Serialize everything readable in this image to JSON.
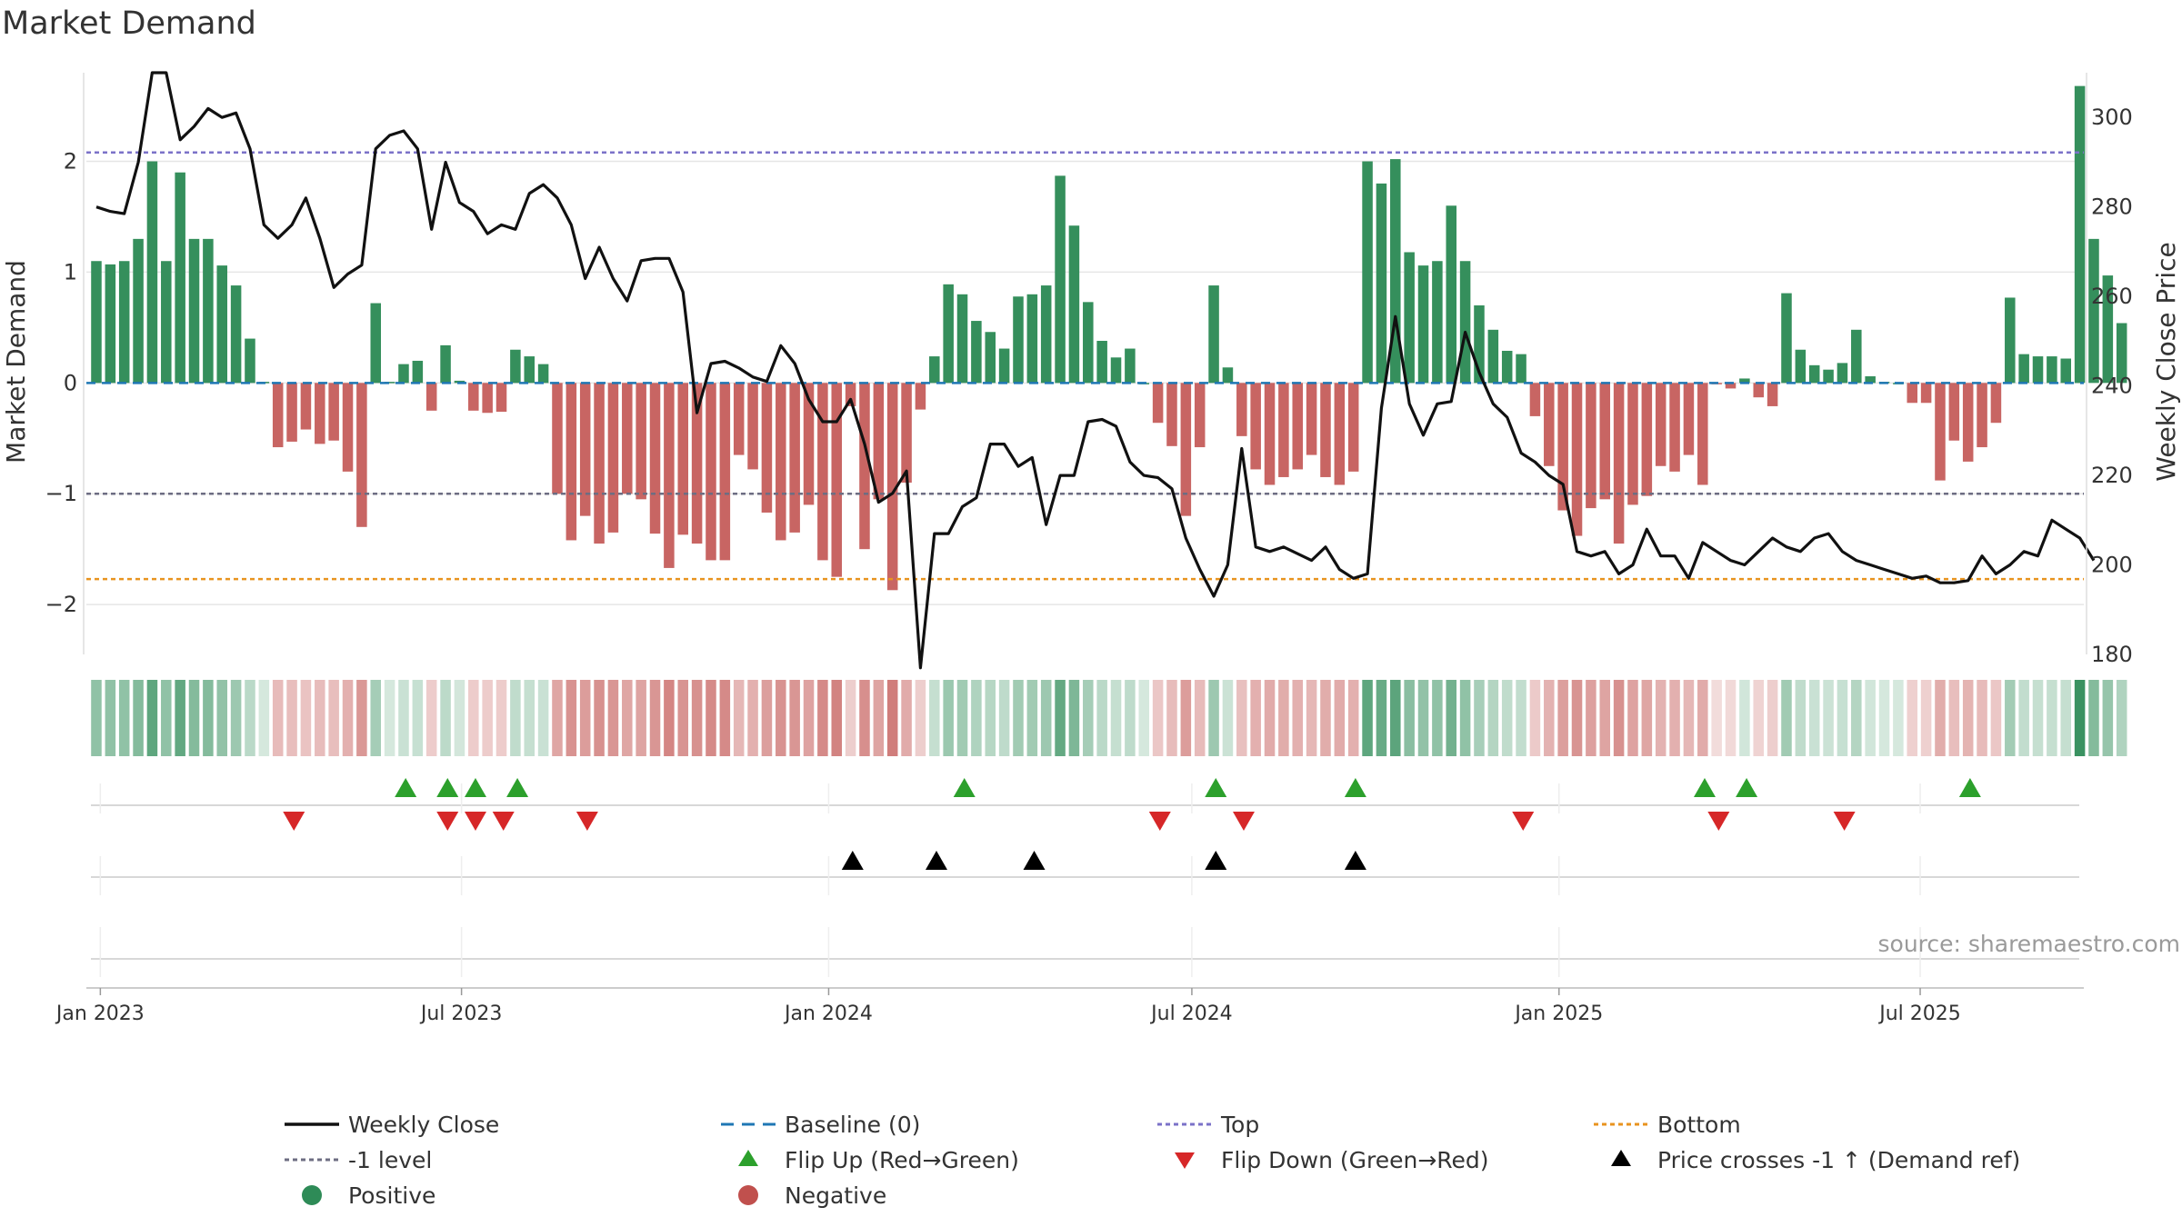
{
  "chart_data": {
    "type": "bar",
    "title": "Market Demand",
    "ylabel": "Market Demand",
    "y2label": "Weekly Close Price",
    "source": "source: sharemaestro.com",
    "ylim": [
      -2.45,
      2.8
    ],
    "y2lim": [
      180,
      310
    ],
    "yticks": [
      -2,
      -1,
      0,
      1,
      2
    ],
    "ytick_labels": [
      "−2",
      "−1",
      "0",
      "1",
      "2"
    ],
    "y2ticks": [
      180,
      200,
      220,
      240,
      260,
      280,
      300
    ],
    "y2tick_labels": [
      "180",
      "200",
      "220",
      "240",
      "260",
      "280",
      "300"
    ],
    "x_start": "2022-12-25",
    "x_end": "2025-09-21",
    "first_week": "2022-12-30",
    "week_days": 7,
    "xticks": [
      {
        "date": "2023-01-01",
        "label": "Jan 2023"
      },
      {
        "date": "2023-07-01",
        "label": "Jul 2023"
      },
      {
        "date": "2024-01-01",
        "label": "Jan 2024"
      },
      {
        "date": "2024-07-01",
        "label": "Jul 2024"
      },
      {
        "date": "2025-01-01",
        "label": "Jan 2025"
      },
      {
        "date": "2025-07-01",
        "label": "Jul 2025"
      }
    ],
    "reference_lines": {
      "top": 2.08,
      "level_minus_1": -1.0,
      "bottom": -1.77,
      "baseline": 0
    },
    "demand": [
      1.1,
      1.07,
      1.1,
      1.3,
      2.0,
      1.1,
      1.9,
      1.3,
      1.3,
      1.06,
      0.88,
      0.4,
      0.01,
      -0.58,
      -0.53,
      -0.42,
      -0.55,
      -0.52,
      -0.8,
      -1.3,
      0.72,
      0.01,
      0.17,
      0.2,
      -0.25,
      0.34,
      0.02,
      -0.25,
      -0.27,
      -0.26,
      0.3,
      0.24,
      0.17,
      -1.0,
      -1.42,
      -1.2,
      -1.45,
      -1.35,
      -1.0,
      -1.05,
      -1.36,
      -1.67,
      -1.37,
      -1.45,
      -1.6,
      -1.6,
      -0.65,
      -0.78,
      -1.17,
      -1.42,
      -1.35,
      -1.1,
      -1.6,
      -1.75,
      -0.21,
      -1.5,
      -1.05,
      -1.87,
      -0.9,
      -0.24,
      0.24,
      0.89,
      0.8,
      0.56,
      0.46,
      0.31,
      0.78,
      0.8,
      0.88,
      1.87,
      1.42,
      0.73,
      0.38,
      0.23,
      0.31,
      0.0,
      -0.36,
      -0.57,
      -1.2,
      -0.58,
      0.88,
      0.14,
      -0.48,
      -0.78,
      -0.92,
      -0.85,
      -0.78,
      -0.65,
      -0.85,
      -0.92,
      -0.8,
      2.0,
      1.8,
      2.02,
      1.18,
      1.06,
      1.1,
      1.6,
      1.1,
      0.7,
      0.48,
      0.29,
      0.26,
      -0.3,
      -0.75,
      -1.15,
      -1.38,
      -1.13,
      -1.05,
      -1.45,
      -1.1,
      -1.02,
      -0.75,
      -0.8,
      -0.65,
      -0.92,
      -0.01,
      -0.05,
      0.04,
      -0.13,
      -0.21,
      0.81,
      0.3,
      0.16,
      0.12,
      0.18,
      0.48,
      0.06,
      0.01,
      0.0,
      -0.18,
      -0.18,
      -0.88,
      -0.52,
      -0.71,
      -0.58,
      -0.36,
      0.77,
      0.26,
      0.24,
      0.24,
      0.22,
      2.68,
      1.3,
      0.97,
      0.54
    ],
    "price": [
      280,
      279,
      278.5,
      290,
      310,
      310,
      295,
      298,
      302,
      300,
      301,
      293,
      276,
      273,
      276,
      282,
      273,
      262,
      265,
      267,
      293,
      296,
      297,
      293,
      275,
      290,
      281,
      279,
      274,
      276,
      275,
      283,
      285,
      282,
      276,
      264,
      271,
      264,
      259,
      268,
      268.5,
      268.5,
      261,
      234,
      245,
      245.5,
      244,
      242,
      241,
      249,
      245,
      237,
      232,
      232,
      237,
      227,
      214,
      216,
      221,
      177,
      207,
      207,
      213,
      215,
      227,
      227,
      222,
      224,
      209,
      220,
      220,
      232,
      232.5,
      231,
      223,
      220,
      219.5,
      217,
      206,
      199,
      193,
      200,
      226,
      204,
      203,
      204,
      202.5,
      201,
      204,
      199,
      197,
      198,
      235,
      255.5,
      236,
      229,
      236,
      236.5,
      252,
      243,
      236,
      233,
      225,
      223,
      220,
      218,
      203,
      202,
      203,
      198,
      200,
      208,
      202,
      202,
      197,
      205,
      203,
      201,
      200,
      203,
      206,
      204,
      203,
      206,
      207,
      203,
      201,
      200,
      199,
      198,
      197,
      197.5,
      196,
      196,
      196.5,
      202,
      198,
      200,
      203,
      202,
      210,
      208,
      206,
      201
    ]
  },
  "strip": {
    "green_strong": "#2e8b57",
    "red_strong": "#c0504d"
  },
  "event_rows": {
    "flip_up": [
      "2023-06-03",
      "2023-06-24",
      "2023-07-08",
      "2023-07-29",
      "2024-03-09",
      "2024-07-13",
      "2024-09-21",
      "2025-03-15",
      "2025-04-05",
      "2025-07-26"
    ],
    "flip_down": [
      "2023-04-08",
      "2023-06-24",
      "2023-07-08",
      "2023-07-22",
      "2023-09-02",
      "2024-06-15",
      "2024-07-27",
      "2024-12-14",
      "2025-03-22",
      "2025-05-24"
    ],
    "price_cross": [
      "2024-01-13",
      "2024-02-24",
      "2024-04-13",
      "2024-07-13",
      "2024-09-21"
    ]
  },
  "colors": {
    "positive": "#2e8b57",
    "negative": "#c0504d",
    "price": "#111111",
    "top": "#7b72c8",
    "level": "#6d6d82",
    "bottom": "#e8931f",
    "baseline": "#1f77b4",
    "flip_up": "#2ca02c",
    "flip_down": "#d62728",
    "cross": "#000000",
    "grid": "#e6e6e6"
  },
  "legend": [
    {
      "label": "Weekly Close",
      "icon": "solid-line"
    },
    {
      "label": "Baseline (0)",
      "icon": "dashed-line"
    },
    {
      "label": "Top",
      "icon": "dotted-line"
    },
    {
      "label": "Bottom",
      "icon": "dotted-line"
    },
    {
      "label": "-1 level",
      "icon": "dotted-line"
    },
    {
      "label": "Flip Up (Red→Green)",
      "icon": "triangle-up"
    },
    {
      "label": "Flip Down (Green→Red)",
      "icon": "triangle-down"
    },
    {
      "label": "Price crosses -1 ↑ (Demand ref)",
      "icon": "triangle-up"
    },
    {
      "label": "Positive",
      "icon": "circle"
    },
    {
      "label": "Negative",
      "icon": "circle"
    }
  ]
}
